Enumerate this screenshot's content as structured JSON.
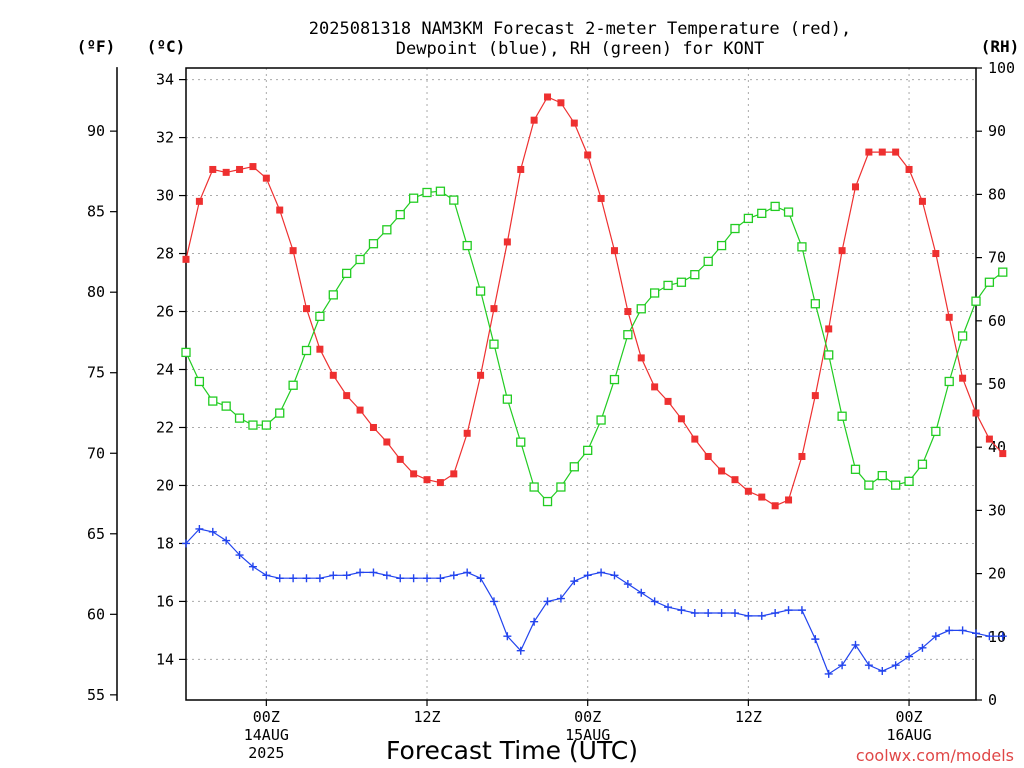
{
  "chart_data": {
    "type": "line",
    "title_line1": "2025081318 NAM3KM Forecast 2-meter Temperature (red),",
    "title_line2": "Dewpoint (blue), RH (green) for KONT",
    "units": {
      "left_outer": "(ºF)",
      "left_inner": "(ºC)",
      "right": "(RH)"
    },
    "xlabel": "Forecast Time (UTC)",
    "credit": "coolwx.com/models",
    "x_start_hour": 0,
    "x_end_hour": 59,
    "x_ticks": [
      {
        "hour": 6,
        "lines": [
          "00Z",
          "14AUG",
          "2025"
        ]
      },
      {
        "hour": 18,
        "lines": [
          "12Z",
          "",
          ""
        ]
      },
      {
        "hour": 30,
        "lines": [
          "00Z",
          "15AUG",
          ""
        ]
      },
      {
        "hour": 42,
        "lines": [
          "12Z",
          "",
          ""
        ]
      },
      {
        "hour": 54,
        "lines": [
          "00Z",
          "16AUG",
          ""
        ]
      }
    ],
    "celsius_axis": {
      "min": 12.6,
      "max": 34.4,
      "ticks": [
        14,
        16,
        18,
        20,
        22,
        24,
        26,
        28,
        30,
        32,
        34
      ]
    },
    "fahrenheit_ticks": [
      55,
      60,
      65,
      70,
      75,
      80,
      85,
      90
    ],
    "rh_axis": {
      "min": 0,
      "max": 100,
      "ticks": [
        0,
        10,
        20,
        30,
        40,
        50,
        60,
        70,
        80,
        90,
        100
      ]
    },
    "grid": true,
    "colors": {
      "temperature": "#ee3030",
      "dewpoint": "#2244ee",
      "rh": "#22cc22",
      "grid": "#aaaaaa"
    },
    "series": [
      {
        "name": "Temperature",
        "units": "C",
        "color": "#ee3030",
        "marker": "filled-square",
        "values": [
          27.8,
          29.8,
          30.9,
          30.8,
          30.9,
          31.0,
          30.6,
          29.5,
          28.1,
          26.1,
          24.7,
          23.8,
          23.1,
          22.6,
          22.0,
          21.5,
          20.9,
          20.4,
          20.2,
          20.1,
          20.4,
          21.8,
          23.8,
          26.1,
          28.4,
          30.9,
          32.6,
          33.4,
          33.2,
          32.5,
          31.4,
          29.9,
          28.1,
          26.0,
          24.4,
          23.4,
          22.9,
          22.3,
          21.6,
          21.0,
          20.5,
          20.2,
          19.8,
          19.6,
          19.3,
          19.5,
          21.0,
          23.1,
          25.4,
          28.1,
          30.3,
          31.5,
          31.5,
          31.5,
          30.9,
          29.8,
          28.0,
          25.8,
          23.7,
          22.5,
          21.6,
          21.1
        ]
      },
      {
        "name": "Dewpoint",
        "units": "C",
        "color": "#2244ee",
        "marker": "plus",
        "values": [
          18.0,
          18.5,
          18.4,
          18.1,
          17.6,
          17.2,
          16.9,
          16.8,
          16.8,
          16.8,
          16.8,
          16.9,
          16.9,
          17.0,
          17.0,
          16.9,
          16.8,
          16.8,
          16.8,
          16.8,
          16.9,
          17.0,
          16.8,
          16.0,
          14.8,
          14.3,
          15.3,
          16.0,
          16.1,
          16.7,
          16.9,
          17.0,
          16.9,
          16.6,
          16.3,
          16.0,
          15.8,
          15.7,
          15.6,
          15.6,
          15.6,
          15.6,
          15.5,
          15.5,
          15.6,
          15.7,
          15.7,
          14.7,
          13.5,
          13.8,
          14.5,
          13.8,
          13.6,
          13.8,
          14.1,
          14.4,
          14.8,
          15.0,
          15.0,
          14.9,
          14.8,
          14.8
        ]
      },
      {
        "name": "RH",
        "units": "%",
        "color": "#22cc22",
        "marker": "open-square",
        "values": [
          55.0,
          50.4,
          47.3,
          46.5,
          44.6,
          43.5,
          43.5,
          45.4,
          49.8,
          55.3,
          60.7,
          64.1,
          67.5,
          69.7,
          72.2,
          74.4,
          76.8,
          79.4,
          80.3,
          80.5,
          79.1,
          71.9,
          64.7,
          56.3,
          47.6,
          40.8,
          33.7,
          31.4,
          33.7,
          36.9,
          39.5,
          44.3,
          50.7,
          57.8,
          61.9,
          64.4,
          65.6,
          66.1,
          67.3,
          69.4,
          71.9,
          74.6,
          76.2,
          77.0,
          78.1,
          77.2,
          71.7,
          62.7,
          54.6,
          44.9,
          36.5,
          34.0,
          35.5,
          34.0,
          34.6,
          37.3,
          42.5,
          50.4,
          57.6,
          63.1,
          66.1,
          67.7
        ]
      }
    ]
  }
}
